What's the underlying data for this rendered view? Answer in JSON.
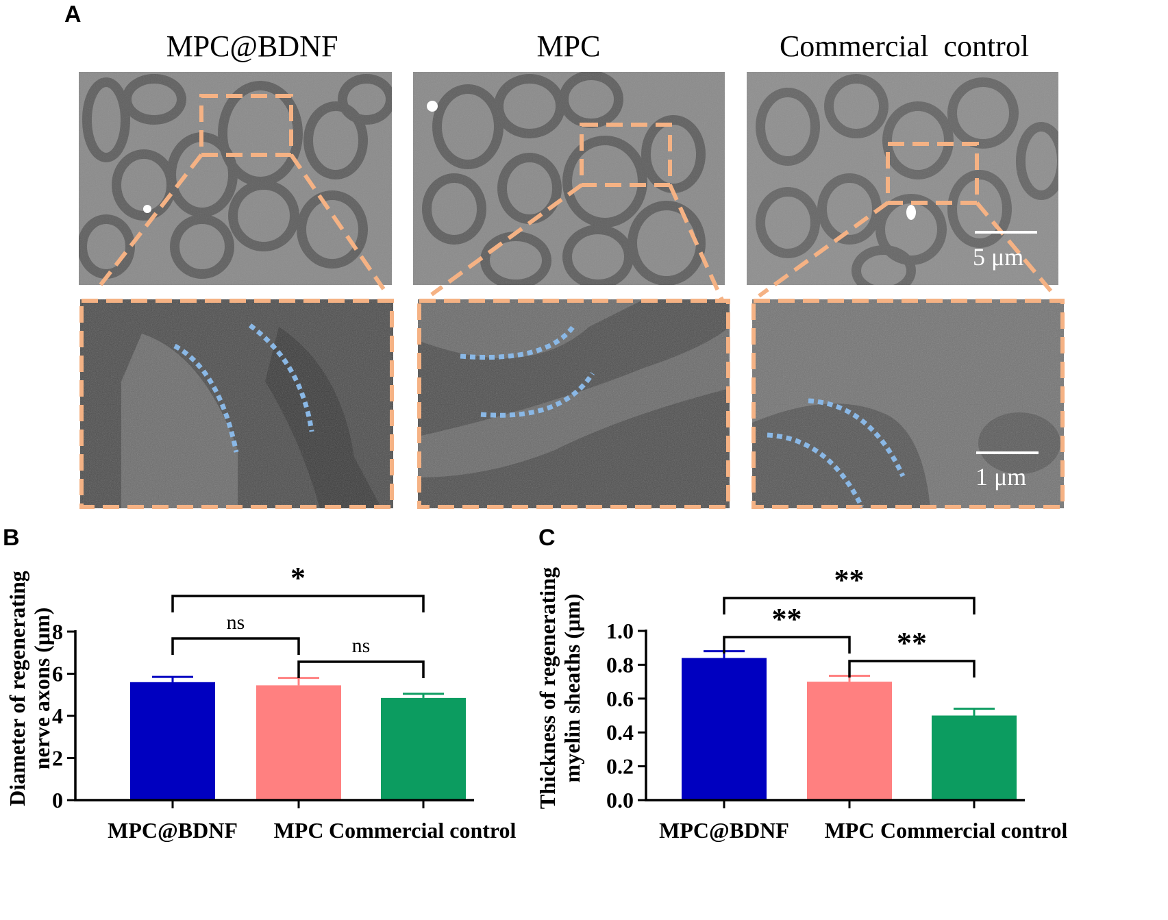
{
  "panels": {
    "a": "A",
    "b": "B",
    "c": "C"
  },
  "micrographs": {
    "columns": [
      "MPC@BDNF",
      "MPC",
      "Commercial  control"
    ],
    "scale_top": "5 μm",
    "scale_bottom": "1 μm"
  },
  "colors": {
    "box": "#f5b284",
    "myelin_trace": "#8ab8e6",
    "MPC@BDNF": "#0000c0",
    "MPC": "#ff8080",
    "Commercial control": "#0c9c60"
  },
  "chart_data": [
    {
      "type": "bar",
      "ylabel": "Diameter of regenerating nerve axons (μm)",
      "categories": [
        "MPC@BDNF",
        "MPC",
        "Commercial control"
      ],
      "values": [
        5.6,
        5.45,
        4.85
      ],
      "errors": [
        0.25,
        0.35,
        0.2
      ],
      "ylim": [
        0,
        8
      ],
      "yticks": [
        0,
        2,
        4,
        6,
        8
      ],
      "significance": [
        {
          "from": 0,
          "to": 2,
          "label": "*"
        },
        {
          "from": 0,
          "to": 1,
          "label": "ns"
        },
        {
          "from": 1,
          "to": 2,
          "label": "ns"
        }
      ]
    },
    {
      "type": "bar",
      "ylabel": "Thickness of regenerating myelin sheaths (μm)",
      "categories": [
        "MPC@BDNF",
        "MPC",
        "Commercial control"
      ],
      "values": [
        0.84,
        0.7,
        0.5
      ],
      "errors": [
        0.04,
        0.035,
        0.04
      ],
      "ylim": [
        0,
        1.0
      ],
      "yticks": [
        0.0,
        0.2,
        0.4,
        0.6,
        0.8,
        1.0
      ],
      "significance": [
        {
          "from": 0,
          "to": 2,
          "label": "**"
        },
        {
          "from": 0,
          "to": 1,
          "label": "**"
        },
        {
          "from": 1,
          "to": 2,
          "label": "**"
        }
      ]
    }
  ]
}
